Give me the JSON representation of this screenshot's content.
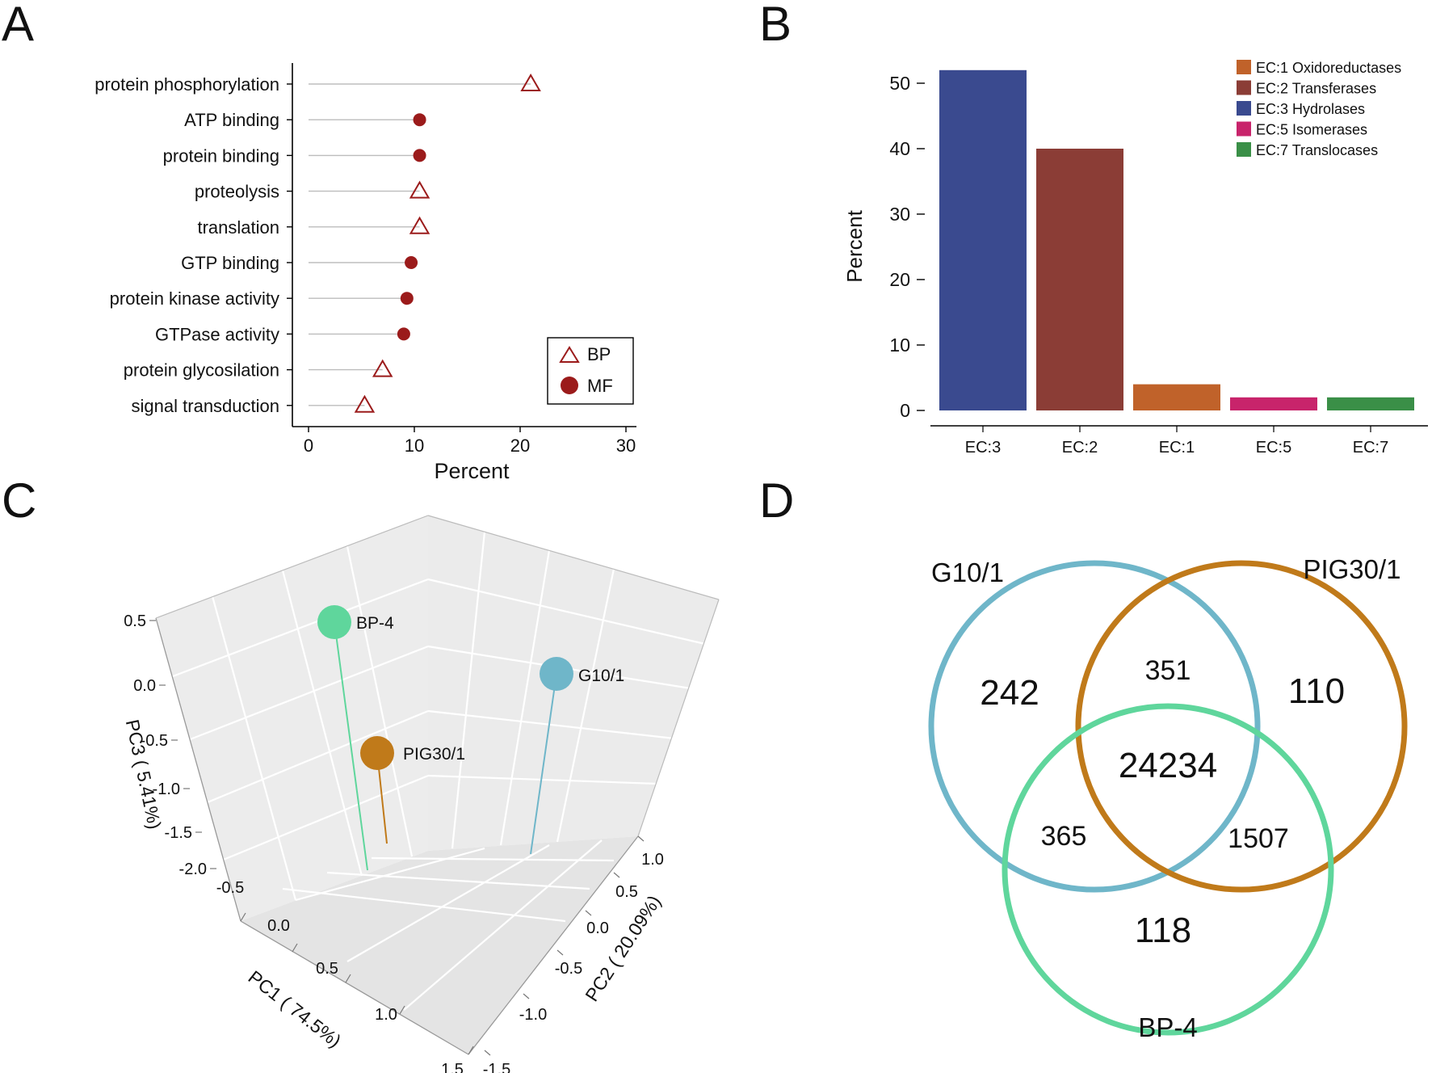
{
  "panels": {
    "A": {
      "letter": "A"
    },
    "B": {
      "letter": "B"
    },
    "C": {
      "letter": "C"
    },
    "D": {
      "letter": "D"
    }
  },
  "colors": {
    "dark_red": "#9b1b1b",
    "ec1": "#c0622a",
    "ec2": "#8b3d36",
    "ec3": "#3a4a8f",
    "ec5": "#c8246b",
    "ec7": "#3a8f47",
    "g10": "#6fb6c9",
    "pig30": "#c07a1a",
    "bp4": "#5fd69c",
    "venn_g10": "#6fb6c9",
    "venn_pig": "#c07a1a",
    "venn_bp4": "#5fd69c"
  },
  "chart_data": [
    {
      "panel": "A",
      "type": "scatter",
      "title": "",
      "xlabel": "Percent",
      "ylabel": "",
      "xlim": [
        0,
        30
      ],
      "xticks": [
        "0",
        "10",
        "20",
        "30"
      ],
      "categories": [
        "protein phosphorylation",
        "ATP binding",
        "protein binding",
        "proteolysis",
        "translation",
        "GTP binding",
        "protein kinase activity",
        "GTPase activity",
        "protein glycosilation",
        "signal transduction"
      ],
      "values": [
        21,
        10.5,
        10.5,
        10.5,
        10.5,
        9.7,
        9.3,
        9,
        7,
        5.3
      ],
      "groups": [
        "BP",
        "MF",
        "MF",
        "BP",
        "BP",
        "MF",
        "MF",
        "MF",
        "BP",
        "BP"
      ],
      "legend": [
        {
          "label": "BP",
          "marker": "triangle-open"
        },
        {
          "label": "MF",
          "marker": "circle-filled"
        }
      ],
      "legend_position": "bottom-right"
    },
    {
      "panel": "B",
      "type": "bar",
      "title": "",
      "xlabel": "",
      "ylabel": "Percent",
      "ylim": [
        0,
        55
      ],
      "yticks": [
        "0",
        "10",
        "20",
        "30",
        "40",
        "50"
      ],
      "categories": [
        "EC:3",
        "EC:2",
        "EC:1",
        "EC:5",
        "EC:7"
      ],
      "values": [
        52,
        40,
        4,
        2,
        2
      ],
      "bar_colors": [
        "ec3",
        "ec2",
        "ec1",
        "ec5",
        "ec7"
      ],
      "legend": [
        {
          "label": "EC:1 Oxidoreductases",
          "color": "ec1"
        },
        {
          "label": "EC:2 Transferases",
          "color": "ec2"
        },
        {
          "label": "EC:3 Hydrolases",
          "color": "ec3"
        },
        {
          "label": "EC:5 Isomerases",
          "color": "ec5"
        },
        {
          "label": "EC:7 Translocases",
          "color": "ec7"
        }
      ],
      "legend_position": "top-right"
    },
    {
      "panel": "C",
      "type": "scatter",
      "title": "",
      "xlabel": "PC1 ( 74.5%)",
      "ylabel": "PC2 ( 20.09%)",
      "zlabel": "PC3 ( 5.41%)",
      "pc1_ticks": [
        "-0.5",
        "0.0",
        "0.5",
        "1.0",
        "1.5"
      ],
      "pc2_ticks": [
        "1.0",
        "0.5",
        "0.0",
        "-0.5",
        "-1.0",
        "-1.5"
      ],
      "pc3_ticks": [
        "0.5",
        "0.0",
        "-0.5",
        "-1.0",
        "-1.5",
        "-2.0"
      ],
      "points": [
        {
          "label": "BP-4",
          "color": "bp4"
        },
        {
          "label": "G10/1",
          "color": "g10"
        },
        {
          "label": "PIG30/1",
          "color": "pig30"
        }
      ]
    },
    {
      "panel": "D",
      "type": "venn",
      "sets": [
        "G10/1",
        "PIG30/1",
        "BP-4"
      ],
      "regions": {
        "g10_only": "242",
        "pig_only": "110",
        "bp4_only": "118",
        "g10_pig": "351",
        "g10_bp4": "365",
        "pig_bp4": "1507",
        "all": "24234"
      }
    }
  ]
}
